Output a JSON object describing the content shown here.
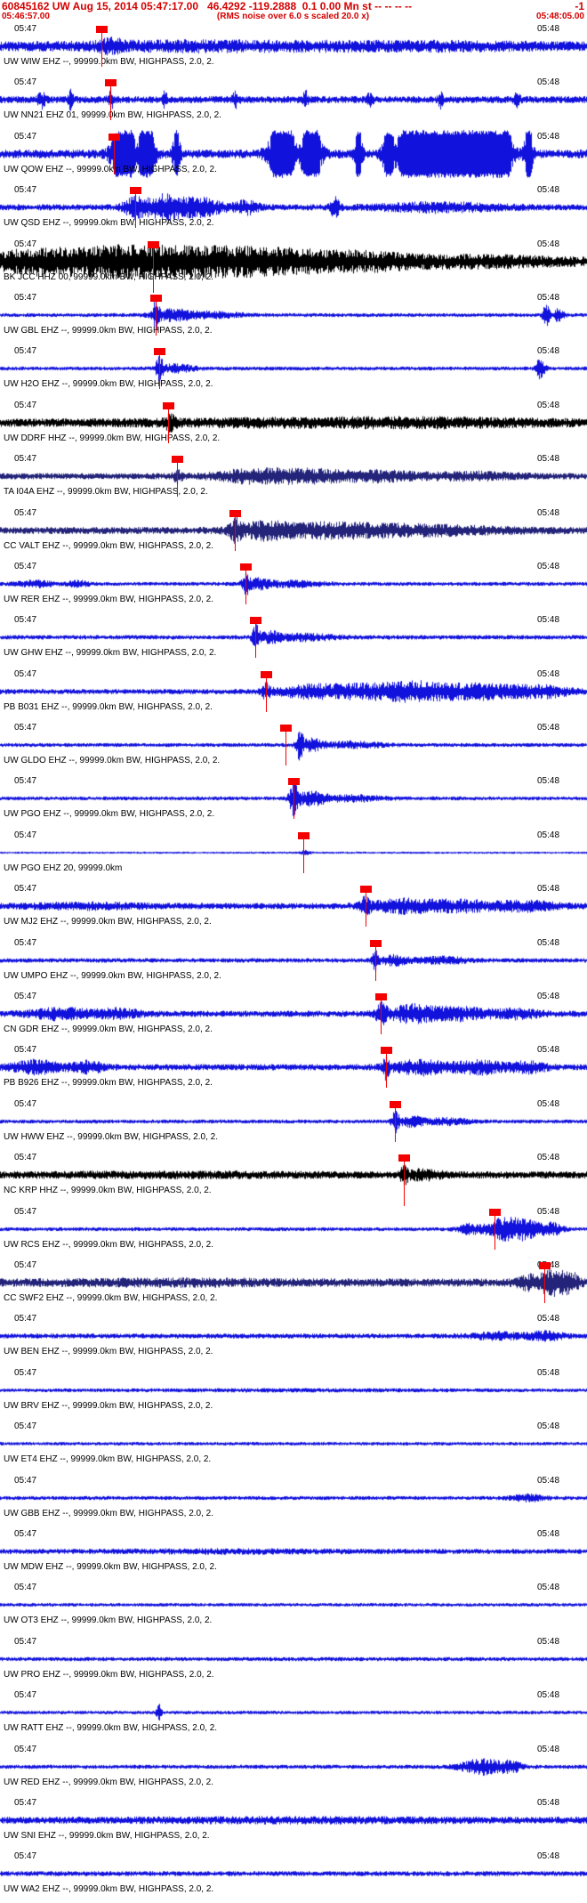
{
  "header": {
    "event_line": "60845162 UW Aug 15, 2014 05:47:17.00   46.4292 -119.2888  0.1 0.00 Mn st -- -- -- --",
    "event_line_right": "-1",
    "window_start": "05:46:57.00",
    "rms_note": "(RMS noise over 6.0 s scaled 20.0 x)",
    "window_end": "05:48:05.00",
    "accent_color": "#d40000"
  },
  "ticks": {
    "left": "05:47",
    "right": "05:48"
  },
  "colors": {
    "blue": "#1212dd",
    "black": "#000000",
    "navy": "#23237a",
    "pick": "#f40000"
  },
  "traces": [
    {
      "station": "WIW",
      "label": "UW WIW EHZ --, 99999.0km BW, HIGHPASS, 2.0, 2.",
      "color": "blue",
      "pick": 0.173,
      "base": 5,
      "bursts": [
        [
          0.19,
          0.02,
          4
        ],
        [
          0.35,
          0.25,
          3
        ],
        [
          0.75,
          0.2,
          2
        ]
      ]
    },
    {
      "station": "NN21",
      "label": "UW NN21 EHZ 01, 99999.0km BW, HIGHPASS, 2.0, 2.",
      "color": "blue",
      "pick": 0.188,
      "base": 4,
      "bursts": [
        [
          0.07,
          0.006,
          8
        ],
        [
          0.12,
          0.004,
          10
        ],
        [
          0.188,
          0.005,
          9
        ],
        [
          0.28,
          0.004,
          8
        ],
        [
          0.4,
          0.006,
          7
        ],
        [
          0.52,
          0.004,
          9
        ],
        [
          0.63,
          0.005,
          7
        ],
        [
          0.75,
          0.004,
          8
        ],
        [
          0.88,
          0.005,
          6
        ]
      ]
    },
    {
      "station": "QOW",
      "label": "UW QOW EHZ --, 99999.0km BW, HIGHPASS, 2.0, 2.",
      "color": "blue",
      "pick": 0.194,
      "base": 5,
      "clip": 27,
      "bursts": [
        [
          0.21,
          0.018,
          40
        ],
        [
          0.25,
          0.012,
          40
        ],
        [
          0.3,
          0.006,
          25
        ],
        [
          0.48,
          0.02,
          40
        ],
        [
          0.53,
          0.015,
          40
        ],
        [
          0.61,
          0.006,
          30
        ],
        [
          0.66,
          0.01,
          20
        ],
        [
          0.71,
          0.03,
          45
        ],
        [
          0.78,
          0.045,
          45
        ],
        [
          0.85,
          0.02,
          40
        ],
        [
          0.9,
          0.007,
          30
        ]
      ]
    },
    {
      "station": "QSD",
      "label": "UW QSD EHZ --, 99999.0km BW, HIGHPASS, 2.0, 2.",
      "color": "blue",
      "pick": 0.23,
      "base": 3.5,
      "bursts": [
        [
          0.23,
          0.02,
          10
        ],
        [
          0.28,
          0.03,
          12
        ],
        [
          0.34,
          0.04,
          9
        ],
        [
          0.42,
          0.02,
          6
        ],
        [
          0.57,
          0.008,
          10
        ],
        [
          0.75,
          0.1,
          4
        ]
      ]
    },
    {
      "station": "JCC",
      "label": "BK JCC HHZ 00, 99999.0km BW, HIGHPASS, 2.0, 2.",
      "color": "black",
      "pick": 0.261,
      "long": true,
      "base": 5,
      "bursts": [
        [
          0.05,
          0.08,
          9
        ],
        [
          0.18,
          0.1,
          11
        ],
        [
          0.33,
          0.12,
          12
        ],
        [
          0.48,
          0.1,
          9
        ],
        [
          0.62,
          0.08,
          6
        ],
        [
          0.8,
          0.15,
          4
        ]
      ]
    },
    {
      "station": "GBL",
      "label": "UW GBL EHZ --, 99999.0km BW, HIGHPASS, 2.0, 2.",
      "color": "blue",
      "pick": 0.265,
      "base": 2.2,
      "bursts": [
        [
          0.265,
          0.006,
          14
        ],
        [
          0.29,
          0.03,
          5
        ],
        [
          0.35,
          0.06,
          3
        ],
        [
          0.93,
          0.006,
          12
        ],
        [
          0.95,
          0.01,
          6
        ]
      ]
    },
    {
      "station": "H2O",
      "label": "UW H2O EHZ --, 99999.0km BW, HIGHPASS, 2.0, 2.",
      "color": "blue",
      "pick": 0.271,
      "base": 2.2,
      "bursts": [
        [
          0.271,
          0.006,
          13
        ],
        [
          0.3,
          0.03,
          4
        ],
        [
          0.92,
          0.008,
          11
        ]
      ]
    },
    {
      "station": "DDRF",
      "label": "UW DDRF HHZ --, 99999.0km BW, HIGHPASS, 2.0, 2.",
      "color": "black",
      "pick": 0.286,
      "base": 4.5,
      "bursts": [
        [
          0.29,
          0.01,
          6
        ],
        [
          0.5,
          0.3,
          2
        ],
        [
          0.75,
          0.2,
          2
        ]
      ]
    },
    {
      "station": "I04A",
      "label": "TA I04A EHZ --, 99999.0km BW, HIGHPASS, 2.0, 2.",
      "color": "navy",
      "pick": 0.302,
      "base": 3.5,
      "bursts": [
        [
          0.302,
          0.008,
          6
        ],
        [
          0.42,
          0.06,
          5
        ],
        [
          0.52,
          0.08,
          6
        ],
        [
          0.65,
          0.06,
          4
        ],
        [
          0.8,
          0.08,
          3
        ]
      ]
    },
    {
      "station": "VALT",
      "label": "CC VALT EHZ --, 99999.0km BW, HIGHPASS, 2.0, 2.",
      "color": "navy",
      "pick": 0.4,
      "base": 4,
      "bursts": [
        [
          0.4,
          0.01,
          10
        ],
        [
          0.45,
          0.04,
          7
        ],
        [
          0.55,
          0.1,
          5
        ],
        [
          0.7,
          0.15,
          4
        ]
      ]
    },
    {
      "station": "RER",
      "label": "UW RER EHZ --, 99999.0km BW, HIGHPASS, 2.0, 2.",
      "color": "blue",
      "pick": 0.418,
      "base": 2.2,
      "bursts": [
        [
          0.06,
          0.03,
          3
        ],
        [
          0.13,
          0.02,
          3
        ],
        [
          0.418,
          0.006,
          13
        ],
        [
          0.44,
          0.02,
          5
        ],
        [
          0.5,
          0.05,
          3
        ]
      ]
    },
    {
      "station": "GHW",
      "label": "UW GHW EHZ --, 99999.0km BW, HIGHPASS, 2.0, 2.",
      "color": "blue",
      "pick": 0.435,
      "base": 2.5,
      "bursts": [
        [
          0.435,
          0.006,
          12
        ],
        [
          0.46,
          0.02,
          5
        ],
        [
          0.52,
          0.05,
          3
        ]
      ]
    },
    {
      "station": "B031",
      "label": "PB B031 EHZ --, 99999.0km BW, HIGHPASS, 2.0, 2.",
      "color": "blue",
      "pick": 0.453,
      "base": 3,
      "bursts": [
        [
          0.453,
          0.008,
          7
        ],
        [
          0.52,
          0.05,
          5
        ],
        [
          0.62,
          0.08,
          7
        ],
        [
          0.72,
          0.06,
          8
        ],
        [
          0.82,
          0.06,
          7
        ],
        [
          0.92,
          0.05,
          6
        ]
      ]
    },
    {
      "station": "GLDO",
      "label": "UW GLDO EHZ --, 99999.0km BW, HIGHPASS, 2.0, 2.",
      "color": "blue",
      "pick": 0.486,
      "base": 2.2,
      "bursts": [
        [
          0.51,
          0.006,
          15
        ],
        [
          0.53,
          0.02,
          6
        ],
        [
          0.6,
          0.05,
          3
        ]
      ]
    },
    {
      "station": "PGO",
      "label": "UW PGO EHZ --, 99999.0km BW, HIGHPASS, 2.0, 2.",
      "color": "blue",
      "pick": 0.5,
      "base": 2.2,
      "bursts": [
        [
          0.5,
          0.008,
          17
        ],
        [
          0.53,
          0.025,
          7
        ],
        [
          0.6,
          0.05,
          3
        ]
      ]
    },
    {
      "station": "PGO-20",
      "label": "UW PGO EHZ 20, 99999.0km",
      "color": "blue",
      "pick": 0.517,
      "base": 1.2,
      "bursts": [
        [
          0.52,
          0.01,
          2
        ]
      ]
    },
    {
      "station": "MJ2",
      "label": "UW MJ2 EHZ --, 99999.0km BW, HIGHPASS, 2.0, 2.",
      "color": "blue",
      "pick": 0.622,
      "base": 3.5,
      "bursts": [
        [
          0.15,
          0.1,
          2
        ],
        [
          0.622,
          0.008,
          8
        ],
        [
          0.68,
          0.05,
          6
        ],
        [
          0.78,
          0.07,
          5
        ],
        [
          0.9,
          0.05,
          4
        ]
      ]
    },
    {
      "station": "UMPO",
      "label": "UW UMPO EHZ --, 99999.0km BW, HIGHPASS, 2.0, 2.",
      "color": "blue",
      "pick": 0.639,
      "base": 2.5,
      "bursts": [
        [
          0.639,
          0.006,
          11
        ],
        [
          0.67,
          0.02,
          5
        ],
        [
          0.75,
          0.05,
          3
        ]
      ]
    },
    {
      "station": "GDR",
      "label": "CN GDR EHZ --, 99999.0km BW, HIGHPASS, 2.0, 2.",
      "color": "blue",
      "pick": 0.649,
      "base": 3.5,
      "bursts": [
        [
          0.1,
          0.05,
          5
        ],
        [
          0.2,
          0.04,
          4
        ],
        [
          0.649,
          0.01,
          9
        ],
        [
          0.7,
          0.04,
          8
        ],
        [
          0.78,
          0.05,
          6
        ],
        [
          0.88,
          0.04,
          4
        ]
      ]
    },
    {
      "station": "B926",
      "label": "PB B926 EHZ --, 99999.0km BW, HIGHPASS, 2.0, 2.",
      "color": "blue",
      "pick": 0.657,
      "base": 3.5,
      "bursts": [
        [
          0.06,
          0.04,
          6
        ],
        [
          0.15,
          0.03,
          5
        ],
        [
          0.657,
          0.006,
          11
        ],
        [
          0.72,
          0.05,
          7
        ],
        [
          0.82,
          0.04,
          6
        ],
        [
          0.9,
          0.03,
          5
        ]
      ]
    },
    {
      "station": "HWW",
      "label": "UW HWW EHZ --, 99999.0km BW, HIGHPASS, 2.0, 2.",
      "color": "blue",
      "pick": 0.673,
      "base": 2.2,
      "bursts": [
        [
          0.673,
          0.006,
          12
        ],
        [
          0.7,
          0.02,
          5
        ],
        [
          0.76,
          0.04,
          3
        ]
      ]
    },
    {
      "station": "KRP",
      "label": "NC KRP HHZ --, 99999.0km BW, HIGHPASS, 2.0, 2.",
      "color": "black",
      "pick": 0.688,
      "long": true,
      "base": 4,
      "bursts": [
        [
          0.3,
          0.25,
          1
        ],
        [
          0.688,
          0.006,
          9
        ],
        [
          0.72,
          0.03,
          4
        ]
      ]
    },
    {
      "station": "RCS",
      "label": "UW RCS EHZ --, 99999.0km BW, HIGHPASS, 2.0, 2.",
      "color": "blue",
      "pick": 0.843,
      "base": 2.2,
      "bursts": [
        [
          0.8,
          0.02,
          5
        ],
        [
          0.85,
          0.025,
          9
        ],
        [
          0.89,
          0.03,
          11
        ],
        [
          0.94,
          0.02,
          6
        ]
      ]
    },
    {
      "station": "SWF2",
      "label": "CC SWF2 EHZ --, 99999.0km BW, HIGHPASS, 2.0, 2.",
      "color": "navy",
      "pick": 0.928,
      "base": 4.5,
      "bursts": [
        [
          0.3,
          0.2,
          1.5
        ],
        [
          0.9,
          0.02,
          6
        ],
        [
          0.94,
          0.02,
          12
        ],
        [
          0.97,
          0.015,
          10
        ]
      ]
    },
    {
      "station": "BEN",
      "label": "UW BEN EHZ --, 99999.0km BW, HIGHPASS, 2.0, 2.",
      "color": "blue",
      "pick": null,
      "base": 2.8,
      "bursts": [
        [
          0.85,
          0.05,
          3
        ],
        [
          0.93,
          0.03,
          4
        ]
      ]
    },
    {
      "station": "BRV",
      "label": "UW BRV EHZ --, 99999.0km BW, HIGHPASS, 2.0, 2.",
      "color": "blue",
      "pick": null,
      "base": 2,
      "bursts": [
        [
          0.5,
          0.3,
          0.5
        ]
      ]
    },
    {
      "station": "ET4",
      "label": "UW ET4 EHZ --, 99999.0km BW, HIGHPASS, 2.0, 2.",
      "color": "blue",
      "pick": null,
      "base": 2,
      "bursts": []
    },
    {
      "station": "GBB",
      "label": "UW GBB EHZ --, 99999.0km BW, HIGHPASS, 2.0, 2.",
      "color": "blue",
      "pick": null,
      "base": 2.2,
      "bursts": [
        [
          0.9,
          0.03,
          3
        ]
      ]
    },
    {
      "station": "MDW",
      "label": "UW MDW EHZ --, 99999.0km BW, HIGHPASS, 2.0, 2.",
      "color": "blue",
      "pick": null,
      "base": 2.8,
      "bursts": [
        [
          0.4,
          0.2,
          1
        ]
      ]
    },
    {
      "station": "OT3",
      "label": "UW OT3 EHZ --, 99999.0km BW, HIGHPASS, 2.0, 2.",
      "color": "blue",
      "pick": null,
      "base": 2,
      "bursts": []
    },
    {
      "station": "PRO",
      "label": "UW PRO EHZ --, 99999.0km BW, HIGHPASS, 2.0, 2.",
      "color": "blue",
      "pick": null,
      "base": 2.3,
      "bursts": []
    },
    {
      "station": "RATT",
      "label": "UW RATT EHZ --, 99999.0km BW, HIGHPASS, 2.0, 2.",
      "color": "blue",
      "pick": null,
      "base": 2,
      "bursts": [
        [
          0.27,
          0.004,
          9
        ]
      ]
    },
    {
      "station": "RED",
      "label": "UW RED EHZ --, 99999.0km BW, HIGHPASS, 2.0, 2.",
      "color": "blue",
      "pick": null,
      "base": 2.3,
      "bursts": [
        [
          0.82,
          0.035,
          8
        ],
        [
          0.87,
          0.02,
          5
        ]
      ]
    },
    {
      "station": "SNI",
      "label": "UW SNI EHZ --, 99999.0km BW, HIGHPASS, 2.0, 2.",
      "color": "blue",
      "pick": null,
      "base": 3.8,
      "bursts": [
        [
          0.5,
          0.3,
          1
        ]
      ]
    },
    {
      "station": "WA2",
      "label": "UW WA2 EHZ --, 99999.0km BW, HIGHPASS, 2.0, 2.",
      "color": "blue",
      "pick": null,
      "base": 2.8,
      "bursts": []
    }
  ]
}
